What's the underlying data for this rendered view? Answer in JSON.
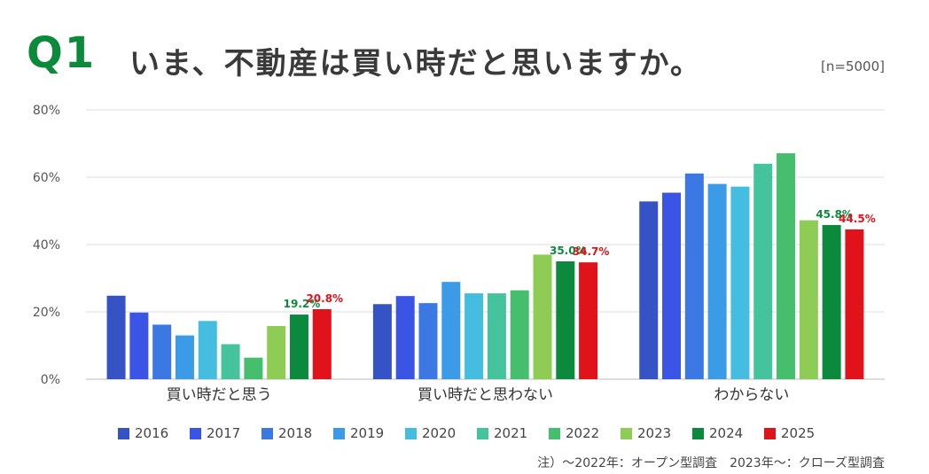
{
  "header": {
    "q_label": "Q1",
    "title": "いま、不動産は買い時だと思いますか。",
    "sample": "[n=5000]"
  },
  "note": "注）〜2022年：オープン型調査　2023年〜：クローズ型調査",
  "legend": [
    {
      "label": "2016",
      "color": "#3653c6"
    },
    {
      "label": "2017",
      "color": "#3a55e6"
    },
    {
      "label": "2018",
      "color": "#3b78e4"
    },
    {
      "label": "2019",
      "color": "#3c9be6"
    },
    {
      "label": "2020",
      "color": "#45bde0"
    },
    {
      "label": "2021",
      "color": "#45c39c"
    },
    {
      "label": "2022",
      "color": "#45be6e"
    },
    {
      "label": "2023",
      "color": "#8ecc55"
    },
    {
      "label": "2024",
      "color": "#0b8a3e"
    },
    {
      "label": "2025",
      "color": "#e0121a"
    }
  ],
  "chart_data": {
    "type": "bar",
    "title": "いま、不動産は買い時だと思いますか。",
    "categories": [
      "買い時だと思う",
      "買い時だと思わない",
      "わからない"
    ],
    "ylim": [
      0,
      80
    ],
    "yticks": [
      "0%",
      "20%",
      "40%",
      "60%",
      "80%"
    ],
    "ytick_values": [
      0,
      20,
      40,
      60,
      80
    ],
    "grid": true,
    "legend_position": "bottom",
    "series": [
      {
        "name": "2016",
        "values": [
          24.8,
          22.3,
          52.8
        ]
      },
      {
        "name": "2017",
        "values": [
          19.8,
          24.7,
          55.4
        ]
      },
      {
        "name": "2018",
        "values": [
          16.2,
          22.6,
          61.1
        ]
      },
      {
        "name": "2019",
        "values": [
          13.0,
          28.9,
          58.0
        ]
      },
      {
        "name": "2020",
        "values": [
          17.3,
          25.5,
          57.2
        ]
      },
      {
        "name": "2021",
        "values": [
          10.4,
          25.5,
          64.0
        ]
      },
      {
        "name": "2022",
        "values": [
          6.4,
          26.4,
          67.1
        ]
      },
      {
        "name": "2023",
        "values": [
          15.8,
          37.0,
          47.2
        ]
      },
      {
        "name": "2024",
        "values": [
          19.2,
          35.0,
          45.8
        ]
      },
      {
        "name": "2025",
        "values": [
          20.8,
          34.7,
          44.5
        ]
      }
    ],
    "data_labels": [
      {
        "series": "2024",
        "values": [
          "19.2%",
          "35.0%",
          "45.8%"
        ],
        "color": "#0b8a3e"
      },
      {
        "series": "2025",
        "values": [
          "20.8%",
          "34.7%",
          "44.5%"
        ],
        "color": "#e0121a"
      }
    ]
  }
}
